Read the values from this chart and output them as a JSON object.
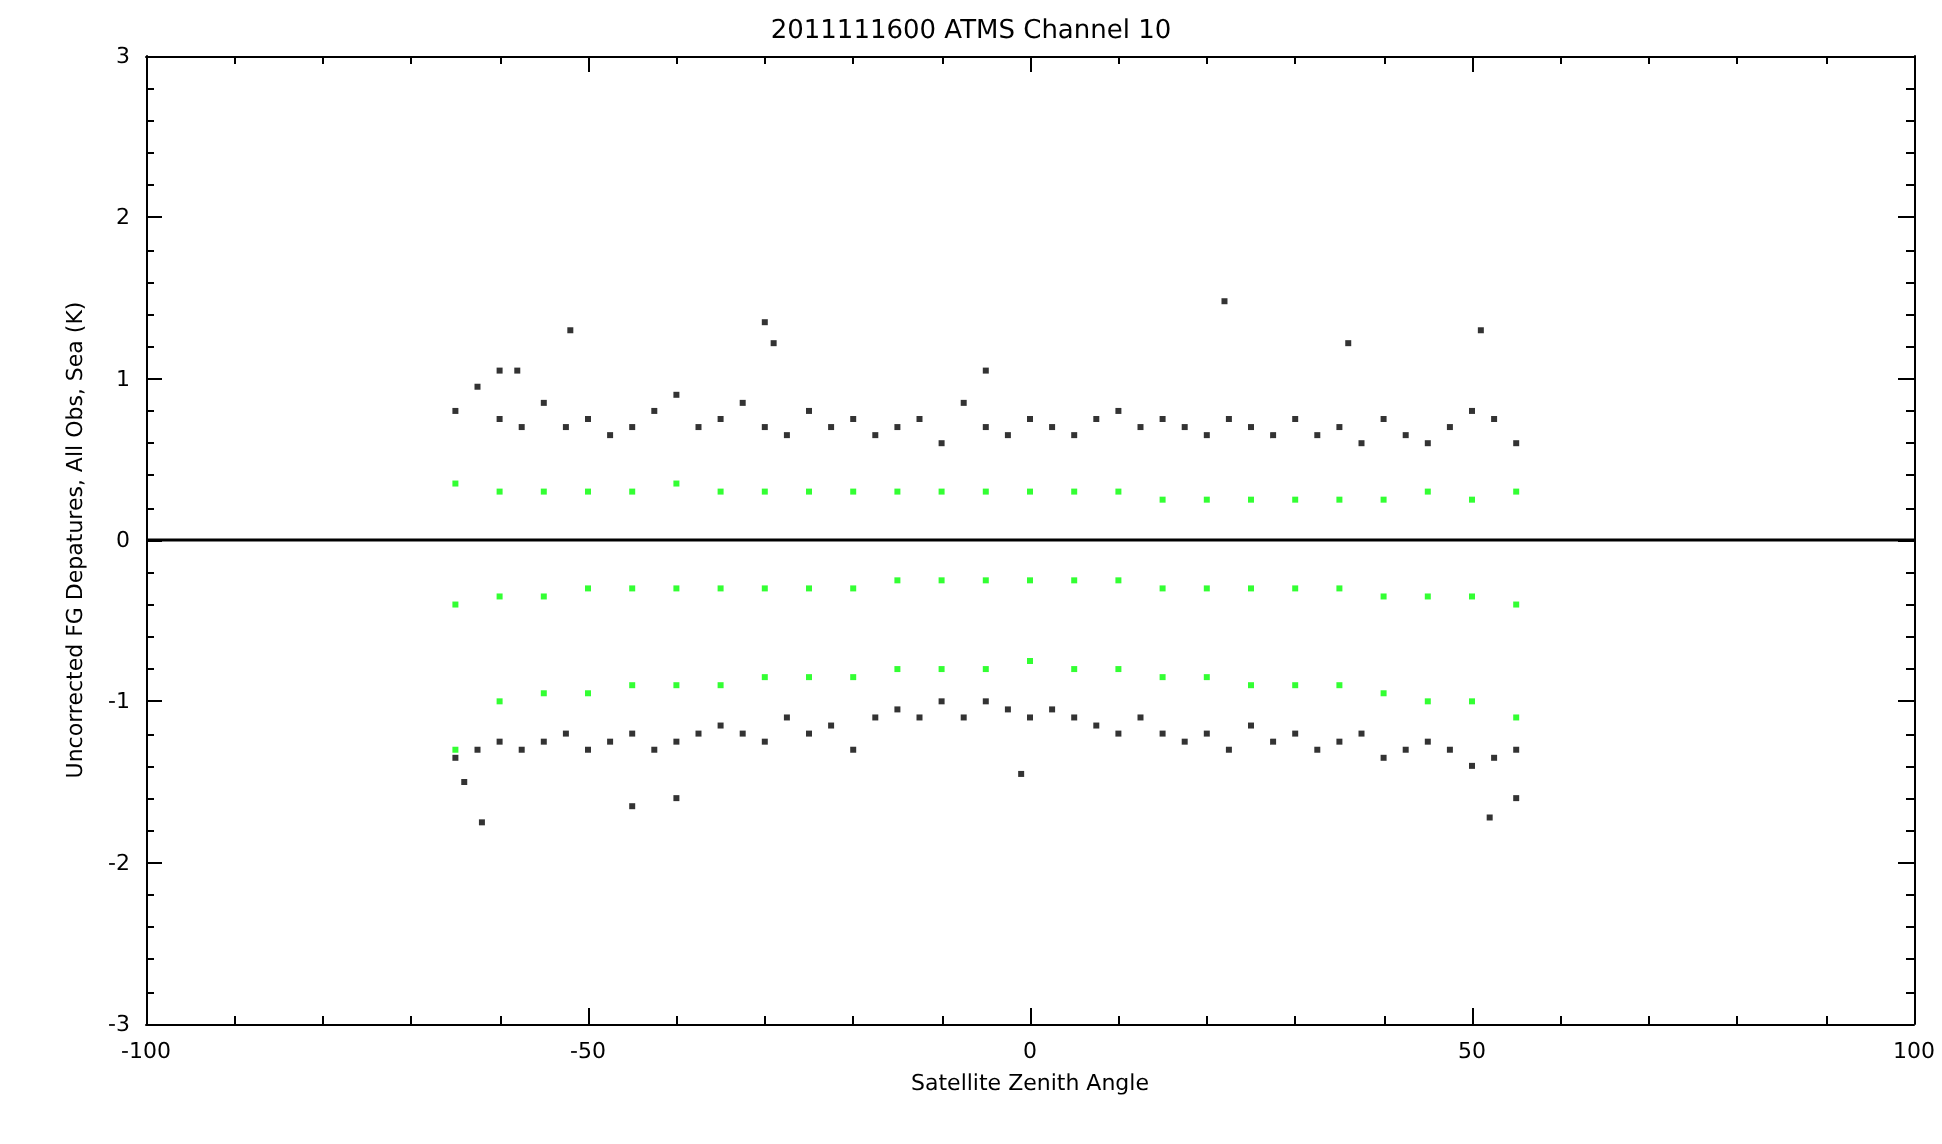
{
  "chart_data": {
    "type": "scatter",
    "title": "2011111600 ATMS Channel 10",
    "xlabel": "Satellite Zenith Angle",
    "ylabel": "Uncorrected FG Depatures, All Obs, Sea (K)",
    "xlim": [
      -100,
      100
    ],
    "xticks": [
      -100,
      -50,
      0,
      50,
      100
    ],
    "ylim": [
      -3,
      3
    ],
    "yticks": [
      -3,
      -2,
      -1,
      0,
      1,
      2,
      3
    ],
    "marker": "square",
    "ref_lines": [
      {
        "axis": "y",
        "value": 0,
        "color": "#000000"
      }
    ],
    "series": [
      {
        "color": "#000000",
        "x": [
          -65,
          -65,
          -62.5,
          -62.5,
          -60,
          -60,
          -57.5,
          -57.5,
          -55,
          -55,
          -52.5,
          -52.5,
          -50,
          -50,
          -47.5,
          -47.5,
          -45,
          -45,
          -42.5,
          -42.5,
          -40,
          -40,
          -37.5,
          -37.5,
          -35,
          -35,
          -32.5,
          -32.5,
          -30,
          -30,
          -27.5,
          -27.5,
          -25,
          -25,
          -22.5,
          -22.5,
          -20,
          -20,
          -17.5,
          -17.5,
          -15,
          -15,
          -12.5,
          -12.5,
          -10,
          -10,
          -7.5,
          -7.5,
          -5,
          -5,
          -2.5,
          -2.5,
          0,
          0,
          2.5,
          2.5,
          5,
          5,
          7.5,
          7.5,
          10,
          10,
          12.5,
          12.5,
          15,
          15,
          17.5,
          17.5,
          20,
          20,
          22.5,
          22.5,
          25,
          25,
          27.5,
          27.5,
          30,
          30,
          32.5,
          32.5,
          35,
          35,
          37.5,
          37.5,
          40,
          40,
          42.5,
          42.5,
          45,
          45,
          47.5,
          47.5,
          50,
          50,
          52.5,
          52.5,
          55,
          55,
          -62,
          -52,
          -45,
          -40,
          -30,
          -29,
          -5,
          -1,
          22,
          36,
          51,
          52,
          55,
          -64,
          -60,
          -58
        ],
        "values": [
          0.8,
          -1.35,
          0.95,
          -1.3,
          0.75,
          -1.25,
          0.7,
          -1.3,
          0.85,
          -1.25,
          0.7,
          -1.2,
          0.75,
          -1.3,
          0.65,
          -1.25,
          0.7,
          -1.2,
          0.8,
          -1.3,
          0.9,
          -1.25,
          0.7,
          -1.2,
          0.75,
          -1.15,
          0.85,
          -1.2,
          0.7,
          -1.25,
          0.65,
          -1.1,
          0.8,
          -1.2,
          0.7,
          -1.15,
          0.75,
          -1.3,
          0.65,
          -1.1,
          0.7,
          -1.05,
          0.75,
          -1.1,
          0.6,
          -1.0,
          0.85,
          -1.1,
          0.7,
          -1.0,
          0.65,
          -1.05,
          0.75,
          -1.1,
          0.7,
          -1.05,
          0.65,
          -1.1,
          0.75,
          -1.15,
          0.8,
          -1.2,
          0.7,
          -1.1,
          0.75,
          -1.2,
          0.7,
          -1.25,
          0.65,
          -1.2,
          0.75,
          -1.3,
          0.7,
          -1.15,
          0.65,
          -1.25,
          0.75,
          -1.2,
          0.65,
          -1.3,
          0.7,
          -1.25,
          0.6,
          -1.2,
          0.75,
          -1.35,
          0.65,
          -1.3,
          0.6,
          -1.25,
          0.7,
          -1.3,
          0.8,
          -1.4,
          0.75,
          -1.35,
          0.6,
          -1.3,
          -1.75,
          1.3,
          -1.65,
          -1.6,
          1.35,
          1.22,
          1.05,
          -1.45,
          1.48,
          1.22,
          1.3,
          -1.72,
          -1.6,
          -1.5,
          1.05,
          1.05
        ]
      },
      {
        "color": "#00ff00",
        "x": [
          -65,
          -65,
          -65,
          -60,
          -60,
          -60,
          -55,
          -55,
          -55,
          -50,
          -50,
          -50,
          -45,
          -45,
          -45,
          -40,
          -40,
          -40,
          -35,
          -35,
          -35,
          -30,
          -30,
          -30,
          -25,
          -25,
          -25,
          -20,
          -20,
          -20,
          -15,
          -15,
          -15,
          -10,
          -10,
          -10,
          -5,
          -5,
          -5,
          0,
          0,
          0,
          5,
          5,
          5,
          10,
          10,
          10,
          15,
          15,
          15,
          20,
          20,
          20,
          25,
          25,
          25,
          30,
          30,
          30,
          35,
          35,
          35,
          40,
          40,
          40,
          45,
          45,
          45,
          50,
          50,
          50,
          55,
          55,
          55
        ],
        "values": [
          0.35,
          -0.4,
          -1.3,
          0.3,
          -0.35,
          -1.0,
          0.3,
          -0.35,
          -0.95,
          0.3,
          -0.3,
          -0.95,
          0.3,
          -0.3,
          -0.9,
          0.35,
          -0.3,
          -0.9,
          0.3,
          -0.3,
          -0.9,
          0.3,
          -0.3,
          -0.85,
          0.3,
          -0.3,
          -0.85,
          0.3,
          -0.3,
          -0.85,
          0.3,
          -0.25,
          -0.8,
          0.3,
          -0.25,
          -0.8,
          0.3,
          -0.25,
          -0.8,
          0.3,
          -0.25,
          -0.75,
          0.3,
          -0.25,
          -0.8,
          0.3,
          -0.25,
          -0.8,
          0.25,
          -0.3,
          -0.85,
          0.25,
          -0.3,
          -0.85,
          0.25,
          -0.3,
          -0.9,
          0.25,
          -0.3,
          -0.9,
          0.25,
          -0.3,
          -0.9,
          0.25,
          -0.35,
          -0.95,
          0.3,
          -0.35,
          -1.0,
          0.25,
          -0.35,
          -1.0,
          0.3,
          -0.4,
          -1.1
        ]
      }
    ]
  }
}
